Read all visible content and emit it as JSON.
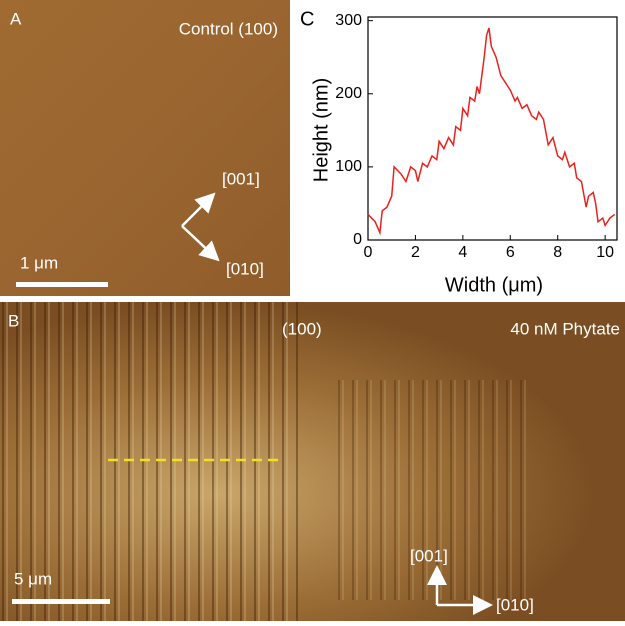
{
  "panel_a": {
    "label": "A",
    "title": "Control (100)",
    "directions": [
      "[001]",
      "[010]"
    ],
    "scale_bar": "1 μm"
  },
  "panel_b": {
    "label": "B",
    "face": "(100)",
    "title": "40 nM Phytate",
    "directions": [
      "[001]",
      "[010]"
    ],
    "scale_bar": "5 μm"
  },
  "chart_data": {
    "type": "line",
    "label": "C",
    "x_label": "Width (μm)",
    "y_label": "Height (nm)",
    "color": "#e8221e",
    "x": [
      0,
      0.3,
      0.5,
      0.6,
      0.8,
      1.0,
      1.1,
      1.4,
      1.6,
      1.8,
      2.0,
      2.1,
      2.3,
      2.5,
      2.7,
      2.9,
      3.0,
      3.2,
      3.4,
      3.6,
      3.7,
      3.9,
      4.0,
      4.2,
      4.3,
      4.5,
      4.6,
      4.7,
      4.8,
      4.9,
      5.0,
      5.1,
      5.2,
      5.4,
      5.6,
      5.8,
      6.0,
      6.2,
      6.3,
      6.5,
      6.7,
      6.9,
      7.1,
      7.2,
      7.4,
      7.6,
      7.8,
      8.0,
      8.2,
      8.3,
      8.5,
      8.7,
      8.8,
      9.0,
      9.2,
      9.3,
      9.5,
      9.6,
      9.7,
      9.9,
      10.0,
      10.2,
      10.4
    ],
    "values": [
      35,
      25,
      10,
      40,
      45,
      60,
      100,
      90,
      80,
      100,
      95,
      80,
      105,
      100,
      115,
      110,
      135,
      125,
      140,
      130,
      155,
      150,
      180,
      170,
      195,
      190,
      210,
      200,
      225,
      250,
      280,
      290,
      265,
      250,
      225,
      215,
      205,
      190,
      195,
      180,
      185,
      170,
      165,
      175,
      165,
      130,
      140,
      115,
      110,
      120,
      100,
      105,
      85,
      80,
      45,
      60,
      65,
      50,
      25,
      30,
      20,
      30,
      35
    ],
    "xlim": [
      0,
      10.5
    ],
    "ylim": [
      0,
      305
    ],
    "xticks": [
      0,
      2,
      4,
      6,
      8,
      10
    ],
    "yticks": [
      0,
      100,
      200,
      300
    ]
  }
}
